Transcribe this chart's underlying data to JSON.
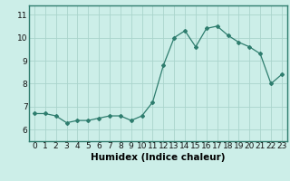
{
  "x": [
    0,
    1,
    2,
    3,
    4,
    5,
    6,
    7,
    8,
    9,
    10,
    11,
    12,
    13,
    14,
    15,
    16,
    17,
    18,
    19,
    20,
    21,
    22,
    23
  ],
  "y": [
    6.7,
    6.7,
    6.6,
    6.3,
    6.4,
    6.4,
    6.5,
    6.6,
    6.6,
    6.4,
    6.6,
    7.2,
    8.8,
    10.0,
    10.3,
    9.6,
    10.4,
    10.5,
    10.1,
    9.8,
    9.6,
    9.3,
    8.0,
    8.4
  ],
  "line_color": "#2e7d6e",
  "marker": "D",
  "marker_size": 2.0,
  "bg_color": "#cceee8",
  "grid_color": "#aad4cc",
  "xlabel": "Humidex (Indice chaleur)",
  "ylim": [
    5.5,
    11.4
  ],
  "xlim": [
    -0.5,
    23.5
  ],
  "yticks": [
    6,
    7,
    8,
    9,
    10,
    11
  ],
  "xticks": [
    0,
    1,
    2,
    3,
    4,
    5,
    6,
    7,
    8,
    9,
    10,
    11,
    12,
    13,
    14,
    15,
    16,
    17,
    18,
    19,
    20,
    21,
    22,
    23
  ],
  "xlabel_fontsize": 7.5,
  "tick_fontsize": 6.5
}
